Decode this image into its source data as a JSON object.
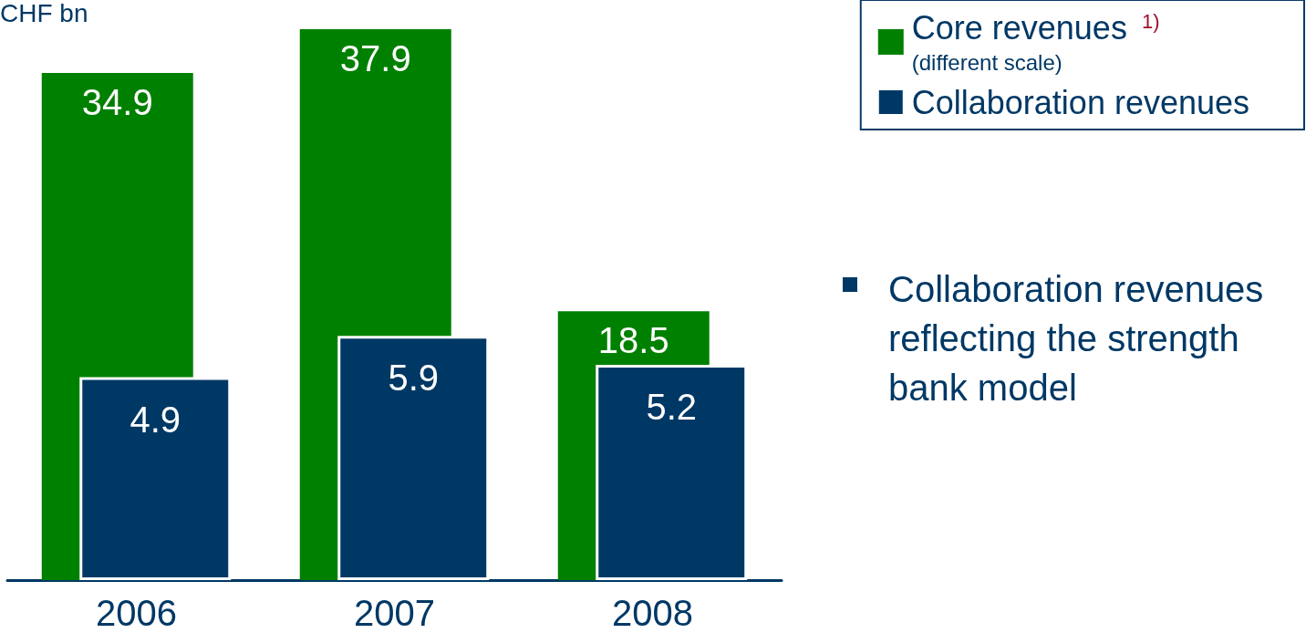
{
  "chart_data": {
    "type": "bar",
    "categories": [
      "2006",
      "2007",
      "2008"
    ],
    "series": [
      {
        "name": "Core revenues $^{1)}$\n(different scale)",
        "color": "#008000",
        "values": [
          34.9,
          37.9,
          18.5
        ]
      },
      {
        "name": "Collaboration revenues",
        "color": "#003865",
        "values": [
          4.9,
          5.9,
          5.2
        ],
        "axis": "y2"
      }
    ],
    "data_labels": true,
    "legend": "top right",
    "annotations": [
      "CHF bn",
      "Collaboration revenues reflecting the strength bank model"
    ]
  }
}
